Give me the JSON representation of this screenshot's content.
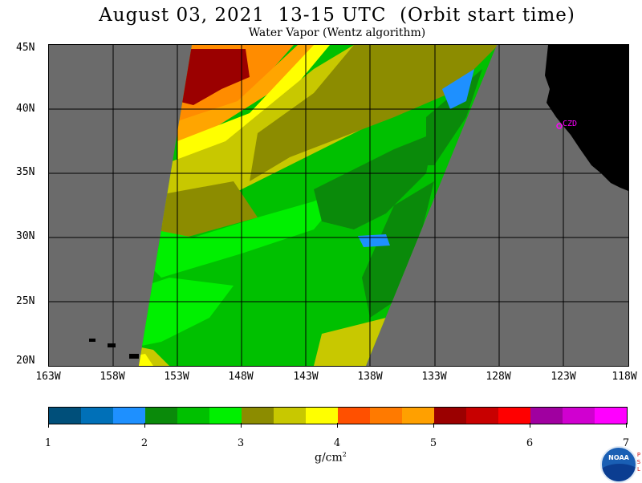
{
  "title": "August 03, 2021  13-15 UTC  (Orbit start time)",
  "subtitle": "Water Vapor (Wentz algorithm)",
  "map": {
    "lat_labels": [
      "45N",
      "40N",
      "35N",
      "30N",
      "25N",
      "20N"
    ],
    "lon_labels": [
      "163W",
      "158W",
      "153W",
      "148W",
      "143W",
      "138W",
      "133W",
      "128W",
      "123W",
      "118W"
    ],
    "station_label": "CZD",
    "station_color": "#ff00ff",
    "no_data_color": "#6b6b6b",
    "land_color": "#000000"
  },
  "colorbar": {
    "units_text": "g/cm",
    "units_power": "2",
    "tick_labels": [
      "1",
      "2",
      "3",
      "4",
      "5",
      "6",
      "7"
    ],
    "colors": [
      "#004f7a",
      "#0070b8",
      "#1e90ff",
      "#0a8a0a",
      "#00c000",
      "#00f000",
      "#8c8c00",
      "#c8c800",
      "#ffff00",
      "#ff5000",
      "#ff7a00",
      "#ffa000",
      "#9b0000",
      "#c80000",
      "#ff0000",
      "#a000a0",
      "#d000d0",
      "#ff00ff"
    ]
  },
  "logo": {
    "text": "NOAA",
    "side_letters": [
      "P",
      "S",
      "L"
    ]
  }
}
